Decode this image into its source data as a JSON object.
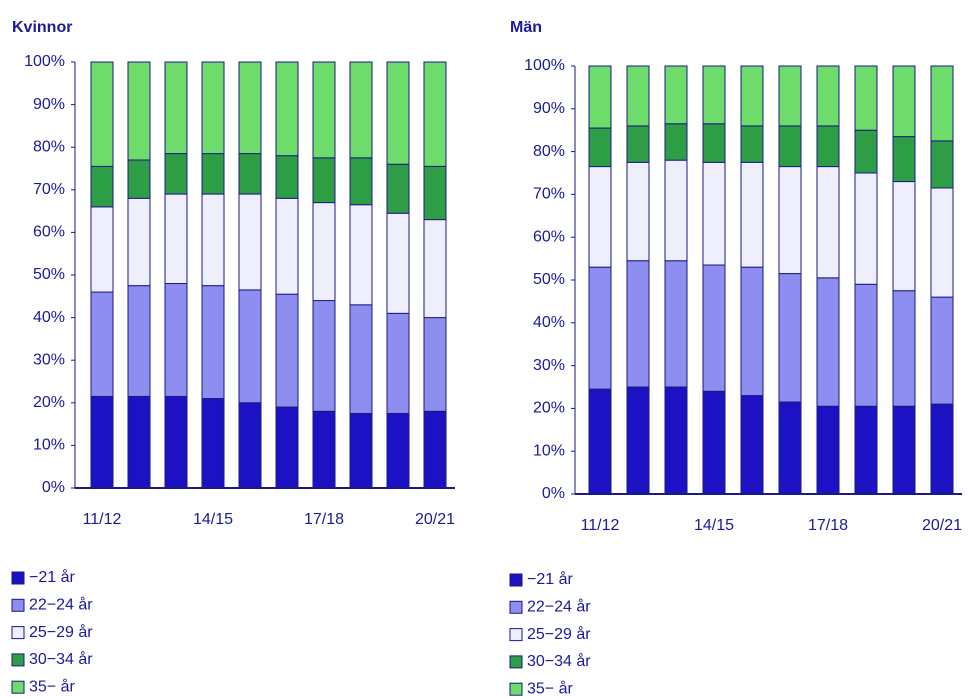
{
  "chart_data": [
    {
      "type": "bar",
      "stacked": true,
      "title": "Kvinnor",
      "categories": [
        "11/12",
        null,
        null,
        "14/15",
        null,
        null,
        "17/18",
        null,
        null,
        "20/21"
      ],
      "series": [
        {
          "name": "−21 år",
          "color": "#1c12c4",
          "values": [
            21.5,
            21.5,
            21.5,
            21,
            20,
            19,
            18,
            17.5,
            17.5,
            18
          ]
        },
        {
          "name": "22−24 år",
          "color": "#8e8ef0",
          "values": [
            24.5,
            26,
            26.5,
            26.5,
            26.5,
            26.5,
            26,
            25.5,
            23.5,
            22
          ]
        },
        {
          "name": "25−29 år",
          "color": "#eeeefc",
          "values": [
            20,
            20.5,
            21,
            21.5,
            22.5,
            22.5,
            23,
            23.5,
            23.5,
            23
          ]
        },
        {
          "name": "30−34 år",
          "color": "#2e9e46",
          "values": [
            9.5,
            9,
            9.5,
            9.5,
            9.5,
            10,
            10.5,
            11,
            11.5,
            12.5
          ]
        },
        {
          "name": "35− år",
          "color": "#6edc6a",
          "values": [
            24.5,
            23,
            21.5,
            21.5,
            21.5,
            22,
            22.5,
            22.5,
            24,
            24.5
          ]
        }
      ],
      "ylim": [
        0,
        100
      ],
      "yticks": [
        {
          "value": 0,
          "label": "0%"
        },
        {
          "value": 10,
          "label": "10%"
        },
        {
          "value": 20,
          "label": "20%"
        },
        {
          "value": 30,
          "label": "30%"
        },
        {
          "value": 40,
          "label": "40%"
        },
        {
          "value": 50,
          "label": "50%"
        },
        {
          "value": 60,
          "label": "60%"
        },
        {
          "value": 70,
          "label": "70%"
        },
        {
          "value": 80,
          "label": "80%"
        },
        {
          "value": 90,
          "label": "90%"
        },
        {
          "value": 100,
          "label": "100%"
        }
      ]
    },
    {
      "type": "bar",
      "stacked": true,
      "title": "Män",
      "categories": [
        "11/12",
        null,
        null,
        "14/15",
        null,
        null,
        "17/18",
        null,
        null,
        "20/21"
      ],
      "series": [
        {
          "name": "−21 år",
          "color": "#1c12c4",
          "values": [
            24.5,
            25,
            25,
            24,
            23,
            21.5,
            20.5,
            20.5,
            20.5,
            21
          ]
        },
        {
          "name": "22−24 år",
          "color": "#8e8ef0",
          "values": [
            28.5,
            29.5,
            29.5,
            29.5,
            30,
            30,
            30,
            28.5,
            27,
            25
          ]
        },
        {
          "name": "25−29 år",
          "color": "#eeeefc",
          "values": [
            23.5,
            23,
            23.5,
            24,
            24.5,
            25,
            26,
            26,
            25.5,
            25.5
          ]
        },
        {
          "name": "30−34 år",
          "color": "#2e9e46",
          "values": [
            9,
            8.5,
            8.5,
            9,
            8.5,
            9.5,
            9.5,
            10,
            10.5,
            11
          ]
        },
        {
          "name": "35− år",
          "color": "#6edc6a",
          "values": [
            14.5,
            14,
            13.5,
            13.5,
            14,
            14,
            14,
            15,
            16.5,
            17.5
          ]
        }
      ],
      "ylim": [
        0,
        100
      ],
      "yticks": [
        {
          "value": 0,
          "label": "0%"
        },
        {
          "value": 10,
          "label": "10%"
        },
        {
          "value": 20,
          "label": "20%"
        },
        {
          "value": 30,
          "label": "30%"
        },
        {
          "value": 40,
          "label": "40%"
        },
        {
          "value": 50,
          "label": "50%"
        },
        {
          "value": 60,
          "label": "60%"
        },
        {
          "value": 70,
          "label": "70%"
        },
        {
          "value": 80,
          "label": "80%"
        },
        {
          "value": 90,
          "label": "90%"
        },
        {
          "value": 100,
          "label": "100%"
        }
      ]
    }
  ]
}
